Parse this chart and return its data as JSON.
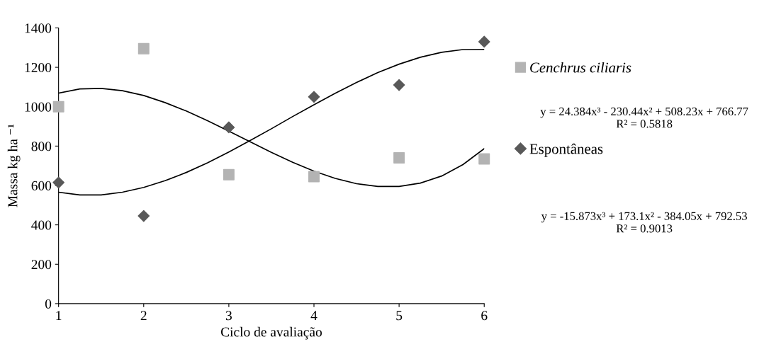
{
  "chart_data": {
    "type": "scatter",
    "xlabel": "Ciclo de avaliação",
    "ylabel": "Massa kg ha ⁻¹",
    "x": [
      1,
      2,
      3,
      4,
      5,
      6
    ],
    "xlim": [
      1,
      6
    ],
    "xticks": [
      1,
      2,
      3,
      4,
      5,
      6
    ],
    "ylim": [
      0,
      1400
    ],
    "yticks": [
      0,
      200,
      400,
      600,
      800,
      1000,
      1200,
      1400
    ],
    "grid": false,
    "legend": "right",
    "series": [
      {
        "name": "Cenchrus ciliaris",
        "color": "#b3b3b3",
        "marker": "square",
        "values": [
          1000,
          1295,
          655,
          645,
          740,
          735
        ]
      },
      {
        "name": "Espontâneas",
        "color": "#595959",
        "marker": "diamond",
        "values": [
          615,
          445,
          895,
          1050,
          1110,
          1330
        ]
      },
      {
        "type": "line",
        "color": "#000000",
        "marker": "none",
        "x": [
          1,
          1.25,
          1.5,
          1.75,
          2,
          2.25,
          2.5,
          2.75,
          3,
          3.25,
          3.5,
          3.75,
          4,
          4.25,
          4.5,
          4.75,
          5,
          5.25,
          5.5,
          5.75,
          6
        ],
        "values": [
          1069,
          1090,
          1093,
          1081,
          1057,
          1021,
          978,
          929,
          876,
          822,
          768,
          718,
          673,
          636,
          609,
          595,
          595,
          612,
          648,
          706,
          787
        ]
      },
      {
        "type": "line",
        "color": "#000000",
        "marker": "none",
        "x": [
          1,
          1.25,
          1.5,
          1.75,
          2,
          2.25,
          2.5,
          2.75,
          3,
          3.25,
          3.5,
          3.75,
          4,
          4.25,
          4.5,
          4.75,
          5,
          5.25,
          5.5,
          5.75,
          6
        ],
        "values": [
          566,
          552,
          552,
          566,
          590,
          624,
          666,
          715,
          770,
          828,
          888,
          950,
          1010,
          1068,
          1123,
          1173,
          1216,
          1251,
          1276,
          1290,
          1291
        ]
      }
    ],
    "annotations": [
      "y = 24.384x³ - 230.44x² + 508.23x + 766.77\nR² = 0.5818",
      "y = -15.873x³ + 173.1x² - 384.05x + 792.53\nR² = 0.9013"
    ]
  }
}
